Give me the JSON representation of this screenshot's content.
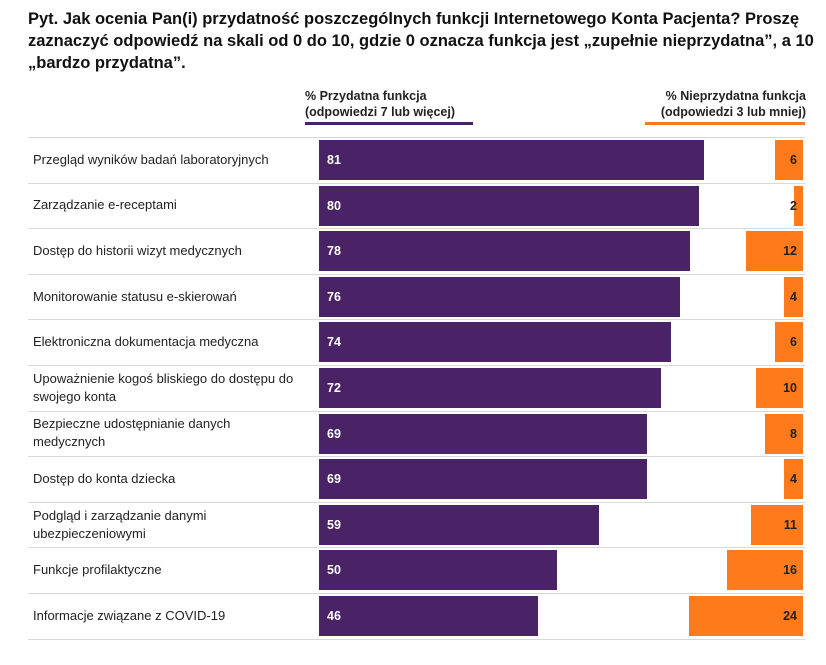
{
  "chart_data": {
    "type": "bar",
    "orientation": "horizontal",
    "title": "Pyt. Jak ocenia Pan(i) przydatność poszczególnych funkcji Internetowego Konta Pacjenta? Proszę zaznaczyć odpowiedź na skali od 0 do 10, gdzie 0 oznacza funkcja jest „zupełnie nieprzydatna”, a 10 „bardzo przydatna”.",
    "categories": [
      "Przegląd wyników badań laboratoryjnych",
      "Zarządzanie e-receptami",
      "Dostęp do historii wizyt medycznych",
      "Monitorowanie statusu e-skierowań",
      "Elektroniczna dokumentacja medyczna",
      "Upoważnienie kogoś bliskiego do dostępu do swojego konta",
      "Bezpieczne udostępnianie danych medycznych",
      "Dostęp do konta dziecka",
      "Podgląd i zarządzanie danymi ubezpieczeniowymi",
      "Funkcje profilaktyczne",
      "Informacje związane z COVID-19"
    ],
    "series": [
      {
        "name": "% Przydatna funkcja\n(odpowiedzi 7 lub więcej)",
        "color": "#4a2366",
        "values": [
          81,
          80,
          78,
          76,
          74,
          72,
          69,
          69,
          59,
          50,
          46
        ]
      },
      {
        "name": "% Nieprzydatna funkcja\n(odpowiedzi 3 lub mniej)",
        "color": "#ff7a1a",
        "values": [
          6,
          2,
          12,
          4,
          6,
          10,
          8,
          4,
          11,
          16,
          24
        ]
      }
    ]
  }
}
